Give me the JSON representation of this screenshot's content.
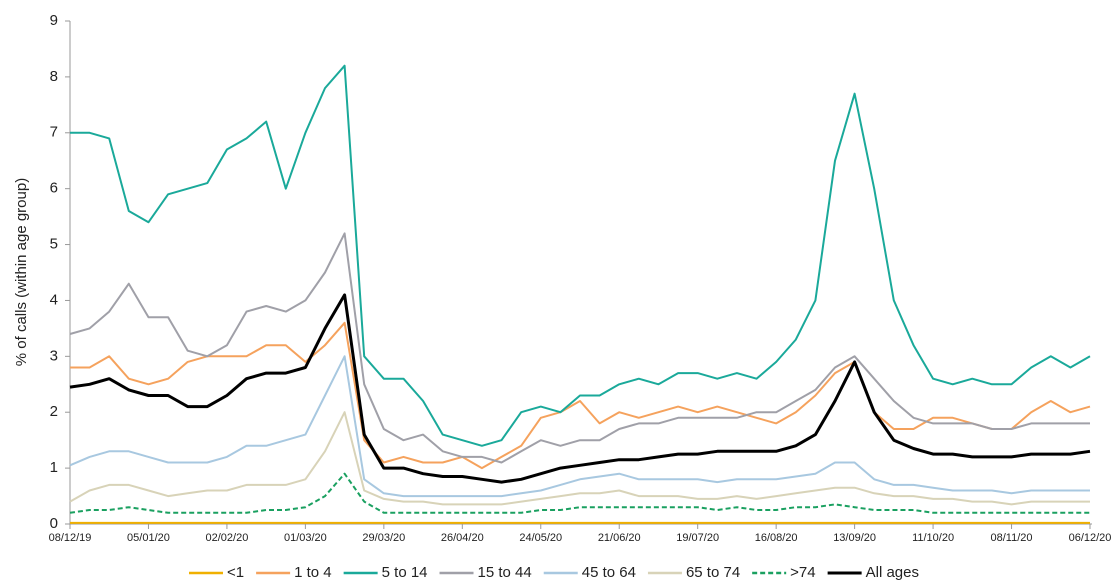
{
  "chart_data": {
    "type": "line",
    "y_label": "% of calls (within age group)",
    "categories": [
      "08/12/19",
      null,
      null,
      null,
      "05/01/20",
      null,
      null,
      null,
      "02/02/20",
      null,
      null,
      null,
      "01/03/20",
      null,
      null,
      null,
      "29/03/20",
      null,
      null,
      null,
      "26/04/20",
      null,
      null,
      null,
      "24/05/20",
      null,
      null,
      null,
      "21/06/20",
      null,
      null,
      null,
      "19/07/20",
      null,
      null,
      null,
      "16/08/20",
      null,
      null,
      null,
      "13/09/20",
      null,
      null,
      null,
      "11/10/20",
      null,
      null,
      null,
      "08/11/20",
      null,
      null,
      null,
      "06/12/20"
    ],
    "ylim": [
      0,
      9
    ],
    "yticks": [
      0,
      1,
      2,
      3,
      4,
      5,
      6,
      7,
      8,
      9
    ],
    "grid": false,
    "series": [
      {
        "name": "<1",
        "color": "#f0b000",
        "values": [
          0.02,
          0.02,
          0.02,
          0.02,
          0.02,
          0.02,
          0.02,
          0.02,
          0.02,
          0.02,
          0.02,
          0.02,
          0.02,
          0.02,
          0.02,
          0.02,
          0.02,
          0.02,
          0.02,
          0.02,
          0.02,
          0.02,
          0.02,
          0.02,
          0.02,
          0.02,
          0.02,
          0.02,
          0.02,
          0.02,
          0.02,
          0.02,
          0.02,
          0.02,
          0.02,
          0.02,
          0.02,
          0.02,
          0.02,
          0.02,
          0.02,
          0.02,
          0.02,
          0.02,
          0.02,
          0.02,
          0.02,
          0.02,
          0.02,
          0.02,
          0.02,
          0.02,
          0.02
        ]
      },
      {
        "name": "1 to 4",
        "color": "#f5a25d",
        "values": [
          2.8,
          2.8,
          3.0,
          2.6,
          2.5,
          2.6,
          2.9,
          3.0,
          3.0,
          3.0,
          3.2,
          3.2,
          2.9,
          3.2,
          3.6,
          1.5,
          1.1,
          1.2,
          1.1,
          1.1,
          1.2,
          1.0,
          1.2,
          1.4,
          1.9,
          2.0,
          2.2,
          1.8,
          2.0,
          1.9,
          2.0,
          2.1,
          2.0,
          2.1,
          2.0,
          1.9,
          1.8,
          2.0,
          2.3,
          2.7,
          2.9,
          2.0,
          1.7,
          1.7,
          1.9,
          1.9,
          1.8,
          1.7,
          1.7,
          2.0,
          2.2,
          2.0,
          2.1
        ]
      },
      {
        "name": "5 to 14",
        "color": "#1aa99a",
        "values": [
          7.0,
          7.0,
          6.9,
          5.6,
          5.4,
          5.9,
          6.0,
          6.1,
          6.7,
          6.9,
          7.2,
          6.0,
          7.0,
          7.8,
          8.2,
          3.0,
          2.6,
          2.6,
          2.2,
          1.6,
          1.5,
          1.4,
          1.5,
          2.0,
          2.1,
          2.0,
          2.3,
          2.3,
          2.5,
          2.6,
          2.5,
          2.7,
          2.7,
          2.6,
          2.7,
          2.6,
          2.9,
          3.3,
          4.0,
          6.5,
          7.7,
          6.0,
          4.0,
          3.2,
          2.6,
          2.5,
          2.6,
          2.5,
          2.5,
          2.8,
          3.0,
          2.8,
          3.0
        ]
      },
      {
        "name": "15 to 44",
        "color": "#a0a0a8",
        "values": [
          3.4,
          3.5,
          3.8,
          4.3,
          3.7,
          3.7,
          3.1,
          3.0,
          3.2,
          3.8,
          3.9,
          3.8,
          4.0,
          4.5,
          5.2,
          2.5,
          1.7,
          1.5,
          1.6,
          1.3,
          1.2,
          1.2,
          1.1,
          1.3,
          1.5,
          1.4,
          1.5,
          1.5,
          1.7,
          1.8,
          1.8,
          1.9,
          1.9,
          1.9,
          1.9,
          2.0,
          2.0,
          2.2,
          2.4,
          2.8,
          3.0,
          2.6,
          2.2,
          1.9,
          1.8,
          1.8,
          1.8,
          1.7,
          1.7,
          1.8,
          1.8,
          1.8,
          1.8
        ]
      },
      {
        "name": "45 to 64",
        "color": "#a8c8e0",
        "values": [
          1.05,
          1.2,
          1.3,
          1.3,
          1.2,
          1.1,
          1.1,
          1.1,
          1.2,
          1.4,
          1.4,
          1.5,
          1.6,
          2.3,
          3.0,
          0.8,
          0.55,
          0.5,
          0.5,
          0.5,
          0.5,
          0.5,
          0.5,
          0.55,
          0.6,
          0.7,
          0.8,
          0.85,
          0.9,
          0.8,
          0.8,
          0.8,
          0.8,
          0.75,
          0.8,
          0.8,
          0.8,
          0.85,
          0.9,
          1.1,
          1.1,
          0.8,
          0.7,
          0.7,
          0.65,
          0.6,
          0.6,
          0.6,
          0.55,
          0.6,
          0.6,
          0.6,
          0.6
        ]
      },
      {
        "name": "65 to 74",
        "color": "#d8d3b8",
        "values": [
          0.4,
          0.6,
          0.7,
          0.7,
          0.6,
          0.5,
          0.55,
          0.6,
          0.6,
          0.7,
          0.7,
          0.7,
          0.8,
          1.3,
          2.0,
          0.6,
          0.45,
          0.4,
          0.4,
          0.35,
          0.35,
          0.35,
          0.35,
          0.4,
          0.45,
          0.5,
          0.55,
          0.55,
          0.6,
          0.5,
          0.5,
          0.5,
          0.45,
          0.45,
          0.5,
          0.45,
          0.5,
          0.55,
          0.6,
          0.65,
          0.65,
          0.55,
          0.5,
          0.5,
          0.45,
          0.45,
          0.4,
          0.4,
          0.35,
          0.4,
          0.4,
          0.4,
          0.4
        ]
      },
      {
        "name": ">74",
        "color": "#1aa060",
        "dashed": true,
        "values": [
          0.2,
          0.25,
          0.25,
          0.3,
          0.25,
          0.2,
          0.2,
          0.2,
          0.2,
          0.2,
          0.25,
          0.25,
          0.3,
          0.5,
          0.9,
          0.4,
          0.2,
          0.2,
          0.2,
          0.2,
          0.2,
          0.2,
          0.2,
          0.2,
          0.25,
          0.25,
          0.3,
          0.3,
          0.3,
          0.3,
          0.3,
          0.3,
          0.3,
          0.25,
          0.3,
          0.25,
          0.25,
          0.3,
          0.3,
          0.35,
          0.3,
          0.25,
          0.25,
          0.25,
          0.2,
          0.2,
          0.2,
          0.2,
          0.2,
          0.2,
          0.2,
          0.2,
          0.2
        ]
      },
      {
        "name": "All ages",
        "color": "#000000",
        "bold": true,
        "values": [
          2.45,
          2.5,
          2.6,
          2.4,
          2.3,
          2.3,
          2.1,
          2.1,
          2.3,
          2.6,
          2.7,
          2.7,
          2.8,
          3.5,
          4.1,
          1.6,
          1.0,
          1.0,
          0.9,
          0.85,
          0.85,
          0.8,
          0.75,
          0.8,
          0.9,
          1.0,
          1.05,
          1.1,
          1.15,
          1.15,
          1.2,
          1.25,
          1.25,
          1.3,
          1.3,
          1.3,
          1.3,
          1.4,
          1.6,
          2.2,
          2.9,
          2.0,
          1.5,
          1.35,
          1.25,
          1.25,
          1.2,
          1.2,
          1.2,
          1.25,
          1.25,
          1.25,
          1.3
        ]
      }
    ]
  }
}
